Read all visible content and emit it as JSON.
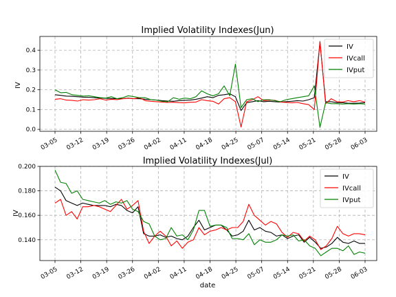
{
  "chart_data": [
    {
      "type": "line",
      "title": "Implied Volatility Indexes(Jun)",
      "xlabel": "",
      "ylabel": "IV",
      "ylim": [
        -0.01,
        0.47
      ],
      "yticks": [
        "0.0",
        "0.1",
        "0.2",
        "0.3",
        "0.4"
      ],
      "ytick_values": [
        0.0,
        0.1,
        0.2,
        0.3,
        0.4
      ],
      "xticks": [
        "03-05",
        "03-12",
        "03-19",
        "03-26",
        "04-02",
        "04-11",
        "04-18",
        "04-25",
        "05-07",
        "05-14",
        "05-21",
        "05-28",
        "06-03"
      ],
      "grid": true,
      "legend_position": "upper right",
      "series": [
        {
          "name": "IV",
          "color": "#000000",
          "values": [
            0.175,
            0.172,
            0.168,
            0.167,
            0.165,
            0.163,
            0.162,
            0.16,
            0.158,
            0.157,
            0.156,
            0.155,
            0.155,
            0.158,
            0.155,
            0.155,
            0.152,
            0.15,
            0.148,
            0.145,
            0.143,
            0.142,
            0.145,
            0.147,
            0.148,
            0.152,
            0.158,
            0.165,
            0.16,
            0.172,
            0.175,
            0.18,
            0.165,
            0.095,
            0.135,
            0.14,
            0.145,
            0.14,
            0.142,
            0.14,
            0.138,
            0.14,
            0.142,
            0.145,
            0.143,
            0.15,
            0.16,
            0.44,
            0.14,
            0.14,
            0.135,
            0.135,
            0.132,
            0.132,
            0.133,
            0.135
          ]
        },
        {
          "name": "IVcall",
          "color": "#ff0000",
          "values": [
            0.152,
            0.155,
            0.148,
            0.147,
            0.143,
            0.15,
            0.148,
            0.15,
            0.155,
            0.148,
            0.152,
            0.15,
            0.155,
            0.157,
            0.155,
            0.16,
            0.145,
            0.142,
            0.14,
            0.138,
            0.136,
            0.137,
            0.135,
            0.134,
            0.137,
            0.138,
            0.15,
            0.145,
            0.142,
            0.128,
            0.155,
            0.16,
            0.14,
            0.012,
            0.14,
            0.15,
            0.165,
            0.145,
            0.148,
            0.147,
            0.138,
            0.136,
            0.134,
            0.136,
            0.13,
            0.125,
            0.1,
            0.445,
            0.13,
            0.155,
            0.14,
            0.138,
            0.145,
            0.14,
            0.145,
            0.138
          ]
        },
        {
          "name": "IVput",
          "color": "#008000",
          "values": [
            0.2,
            0.185,
            0.187,
            0.175,
            0.172,
            0.168,
            0.17,
            0.165,
            0.16,
            0.158,
            0.165,
            0.155,
            0.16,
            0.17,
            0.165,
            0.16,
            0.16,
            0.15,
            0.148,
            0.142,
            0.14,
            0.16,
            0.152,
            0.158,
            0.155,
            0.165,
            0.195,
            0.18,
            0.17,
            0.18,
            0.22,
            0.17,
            0.33,
            0.11,
            0.15,
            0.155,
            0.14,
            0.15,
            0.15,
            0.145,
            0.14,
            0.15,
            0.155,
            0.16,
            0.165,
            0.17,
            0.22,
            0.01,
            0.135,
            0.13,
            0.13,
            0.128,
            0.13,
            0.128,
            0.13,
            0.128
          ]
        }
      ]
    },
    {
      "type": "line",
      "title": "Implied Volatility Indexes(Jul)",
      "xlabel": "date",
      "ylabel": "IV",
      "ylim": [
        0.123,
        0.2
      ],
      "yticks": [
        "0.140",
        "0.160",
        "0.180",
        "0.200"
      ],
      "ytick_values": [
        0.14,
        0.16,
        0.18,
        0.2
      ],
      "xticks": [
        "03-05",
        "03-12",
        "03-19",
        "03-26",
        "04-02",
        "04-11",
        "04-18",
        "04-25",
        "05-07",
        "05-14",
        "05-21",
        "05-28",
        "06-03"
      ],
      "grid": true,
      "legend_position": "upper right",
      "series": [
        {
          "name": "IV",
          "color": "#000000",
          "values": [
            0.183,
            0.18,
            0.172,
            0.17,
            0.168,
            0.17,
            0.169,
            0.168,
            0.168,
            0.168,
            0.167,
            0.169,
            0.168,
            0.164,
            0.162,
            0.167,
            0.145,
            0.143,
            0.143,
            0.144,
            0.142,
            0.143,
            0.141,
            0.14,
            0.143,
            0.15,
            0.156,
            0.148,
            0.15,
            0.152,
            0.152,
            0.148,
            0.143,
            0.144,
            0.147,
            0.156,
            0.148,
            0.15,
            0.147,
            0.146,
            0.143,
            0.144,
            0.141,
            0.143,
            0.144,
            0.138,
            0.142,
            0.138,
            0.133,
            0.134,
            0.137,
            0.142,
            0.138,
            0.137,
            0.139,
            0.137,
            0.137
          ]
        },
        {
          "name": "IVcall",
          "color": "#ff0000",
          "values": [
            0.17,
            0.173,
            0.16,
            0.163,
            0.157,
            0.167,
            0.167,
            0.168,
            0.167,
            0.165,
            0.163,
            0.168,
            0.173,
            0.165,
            0.168,
            0.172,
            0.147,
            0.137,
            0.143,
            0.147,
            0.143,
            0.135,
            0.139,
            0.133,
            0.138,
            0.14,
            0.15,
            0.144,
            0.147,
            0.148,
            0.15,
            0.148,
            0.15,
            0.15,
            0.155,
            0.169,
            0.16,
            0.156,
            0.152,
            0.155,
            0.153,
            0.146,
            0.142,
            0.146,
            0.145,
            0.139,
            0.143,
            0.14,
            0.132,
            0.135,
            0.141,
            0.151,
            0.145,
            0.143,
            0.145,
            0.145,
            0.144
          ]
        },
        {
          "name": "IVput",
          "color": "#008000",
          "values": [
            0.197,
            0.187,
            0.186,
            0.178,
            0.18,
            0.173,
            0.172,
            0.171,
            0.17,
            0.172,
            0.169,
            0.171,
            0.17,
            0.172,
            0.165,
            0.163,
            0.155,
            0.153,
            0.143,
            0.14,
            0.141,
            0.15,
            0.143,
            0.144,
            0.14,
            0.148,
            0.164,
            0.164,
            0.151,
            0.152,
            0.152,
            0.15,
            0.141,
            0.141,
            0.14,
            0.145,
            0.136,
            0.14,
            0.138,
            0.138,
            0.14,
            0.144,
            0.143,
            0.144,
            0.139,
            0.14,
            0.135,
            0.133,
            0.127,
            0.13,
            0.133,
            0.133,
            0.131,
            0.135,
            0.128,
            0.13,
            0.129
          ]
        }
      ]
    }
  ]
}
